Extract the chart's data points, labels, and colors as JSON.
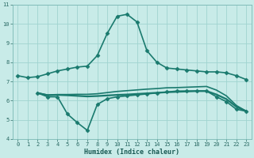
{
  "xlabel": "Humidex (Indice chaleur)",
  "background_color": "#c8ebe8",
  "grid_color": "#a0d4d0",
  "line_color": "#1a7a6e",
  "xlim": [
    -0.5,
    23.5
  ],
  "ylim": [
    4,
    11
  ],
  "yticks": [
    4,
    5,
    6,
    7,
    8,
    9,
    10,
    11
  ],
  "xticks": [
    0,
    1,
    2,
    3,
    4,
    5,
    6,
    7,
    8,
    9,
    10,
    11,
    12,
    13,
    14,
    15,
    16,
    17,
    18,
    19,
    20,
    21,
    22,
    23
  ],
  "series": [
    {
      "x": [
        0,
        1,
        2,
        3,
        4,
        5,
        6,
        7,
        8,
        9,
        10,
        11,
        12,
        13,
        14,
        15,
        16,
        17,
        18,
        19,
        20,
        21,
        22,
        23
      ],
      "y": [
        7.3,
        7.2,
        7.25,
        7.4,
        7.55,
        7.65,
        7.75,
        7.8,
        8.35,
        9.5,
        10.4,
        10.5,
        10.1,
        8.6,
        8.0,
        7.7,
        7.65,
        7.6,
        7.55,
        7.5,
        7.5,
        7.45,
        7.3,
        7.1
      ],
      "marker": "D",
      "marker_size": 2.5,
      "linewidth": 1.2,
      "has_marker": true
    },
    {
      "x": [
        2,
        3,
        4,
        5,
        6,
        7,
        8,
        9,
        10,
        11,
        12,
        13,
        14,
        15,
        16,
        17,
        18,
        19,
        20,
        21,
        22,
        23
      ],
      "y": [
        6.4,
        6.2,
        6.2,
        5.3,
        4.85,
        4.45,
        5.8,
        6.1,
        6.2,
        6.25,
        6.3,
        6.35,
        6.4,
        6.45,
        6.5,
        6.5,
        6.5,
        6.5,
        6.2,
        5.95,
        5.55,
        5.45
      ],
      "marker": "D",
      "marker_size": 2.5,
      "linewidth": 1.2,
      "has_marker": true
    },
    {
      "x": [
        2,
        3,
        4,
        5,
        6,
        7,
        8,
        9,
        10,
        11,
        12,
        13,
        14,
        15,
        16,
        17,
        18,
        19,
        20,
        21,
        22,
        23
      ],
      "y": [
        6.4,
        6.3,
        6.32,
        6.32,
        6.33,
        6.33,
        6.36,
        6.42,
        6.48,
        6.52,
        6.56,
        6.6,
        6.63,
        6.67,
        6.68,
        6.7,
        6.72,
        6.74,
        6.55,
        6.25,
        5.75,
        5.45
      ],
      "marker": null,
      "marker_size": 0,
      "linewidth": 1.2,
      "has_marker": false
    },
    {
      "x": [
        2,
        3,
        4,
        5,
        6,
        7,
        8,
        9,
        10,
        11,
        12,
        13,
        14,
        15,
        16,
        17,
        18,
        19,
        20,
        21,
        22,
        23
      ],
      "y": [
        6.4,
        6.28,
        6.3,
        6.28,
        6.25,
        6.22,
        6.24,
        6.27,
        6.3,
        6.32,
        6.35,
        6.38,
        6.41,
        6.44,
        6.46,
        6.48,
        6.5,
        6.5,
        6.32,
        6.08,
        5.68,
        5.45
      ],
      "marker": null,
      "marker_size": 0,
      "linewidth": 1.6,
      "has_marker": false
    }
  ]
}
